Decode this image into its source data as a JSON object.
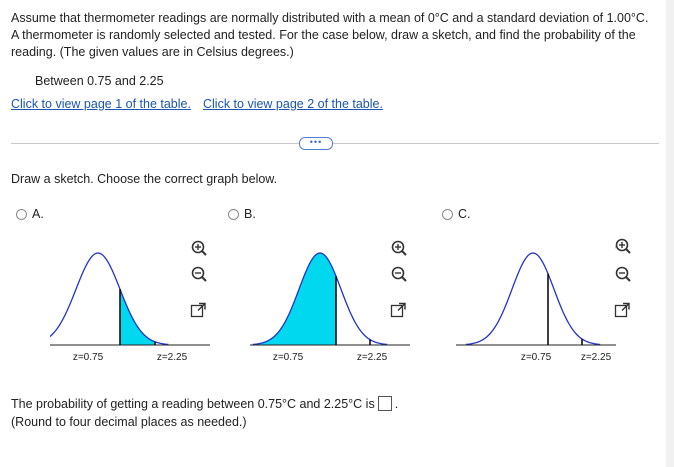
{
  "problem": {
    "text": "Assume that thermometer readings are normally distributed with a mean of 0°C and a standard deviation of 1.00°C. A thermometer is randomly selected and tested. For the case below, draw a sketch, and find the probability of the reading. (The given values are in Celsius degrees.)",
    "case": "Between 0.75 and 2.25"
  },
  "links": {
    "table1": "Click to view page 1 of the table.",
    "table2": "Click to view page 2 of the table."
  },
  "expand_label": "•••",
  "sketch_prompt": "Draw a sketch. Choose the correct graph below.",
  "options": [
    {
      "label": "A.",
      "z1": "z=0.75",
      "z2": "z=2.25"
    },
    {
      "label": "B.",
      "z1": "z=0.75",
      "z2": "z=2.25"
    },
    {
      "label": "C.",
      "z1": "z=0.75",
      "z2": "z=2.25"
    }
  ],
  "tools": [
    "zoom-in-icon",
    "zoom-out-icon",
    "pop-out-icon"
  ],
  "colors": {
    "fill": "#00d8f0",
    "curve": "#2233cc",
    "link": "#1a55b0"
  },
  "result": {
    "text": "The probability of getting a reading between 0.75°C and 2.25°C is",
    "answer": "",
    "suffix": ".",
    "note": "(Round to four decimal places as needed.)"
  }
}
